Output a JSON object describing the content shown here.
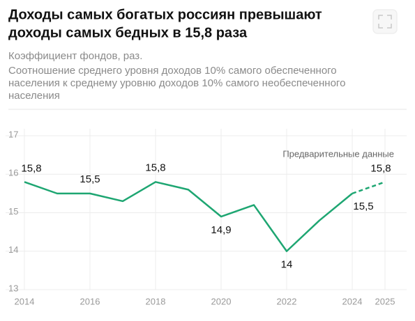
{
  "chart_data": {
    "type": "line",
    "title": [
      "Доходы самых богатых россиян превышают",
      "доходы самых бедных в 15,8 раза"
    ],
    "subtitle": [
      "Коэффициент фондов, раз.",
      "Соотношение среднего уровня доходов 10% самого обеспеченного",
      "населения к среднему уровню доходов 10% самого необеспеченного",
      "населения"
    ],
    "annotation": "Предварительные данные",
    "x": [
      2014,
      2015,
      2016,
      2017,
      2018,
      2019,
      2020,
      2021,
      2022,
      2023,
      2024,
      2025
    ],
    "series": [
      {
        "color": "#1ea672",
        "values": [
          15.8,
          15.5,
          15.5,
          15.3,
          15.8,
          15.6,
          14.9,
          15.2,
          14.0,
          14.8,
          15.5,
          15.8
        ],
        "value_labels": [
          "15,8",
          null,
          "15,5",
          null,
          "15,8",
          null,
          "14,9",
          null,
          "14",
          null,
          "15,5",
          "15,8"
        ]
      }
    ],
    "dashed_after": 2024,
    "xlim": [
      2014,
      2025
    ],
    "xticks": [
      2014,
      2016,
      2018,
      2020,
      2022,
      2024,
      2025
    ],
    "ylim": [
      13,
      17
    ],
    "yticks": [
      13,
      14,
      15,
      16,
      17
    ],
    "grid": true
  }
}
